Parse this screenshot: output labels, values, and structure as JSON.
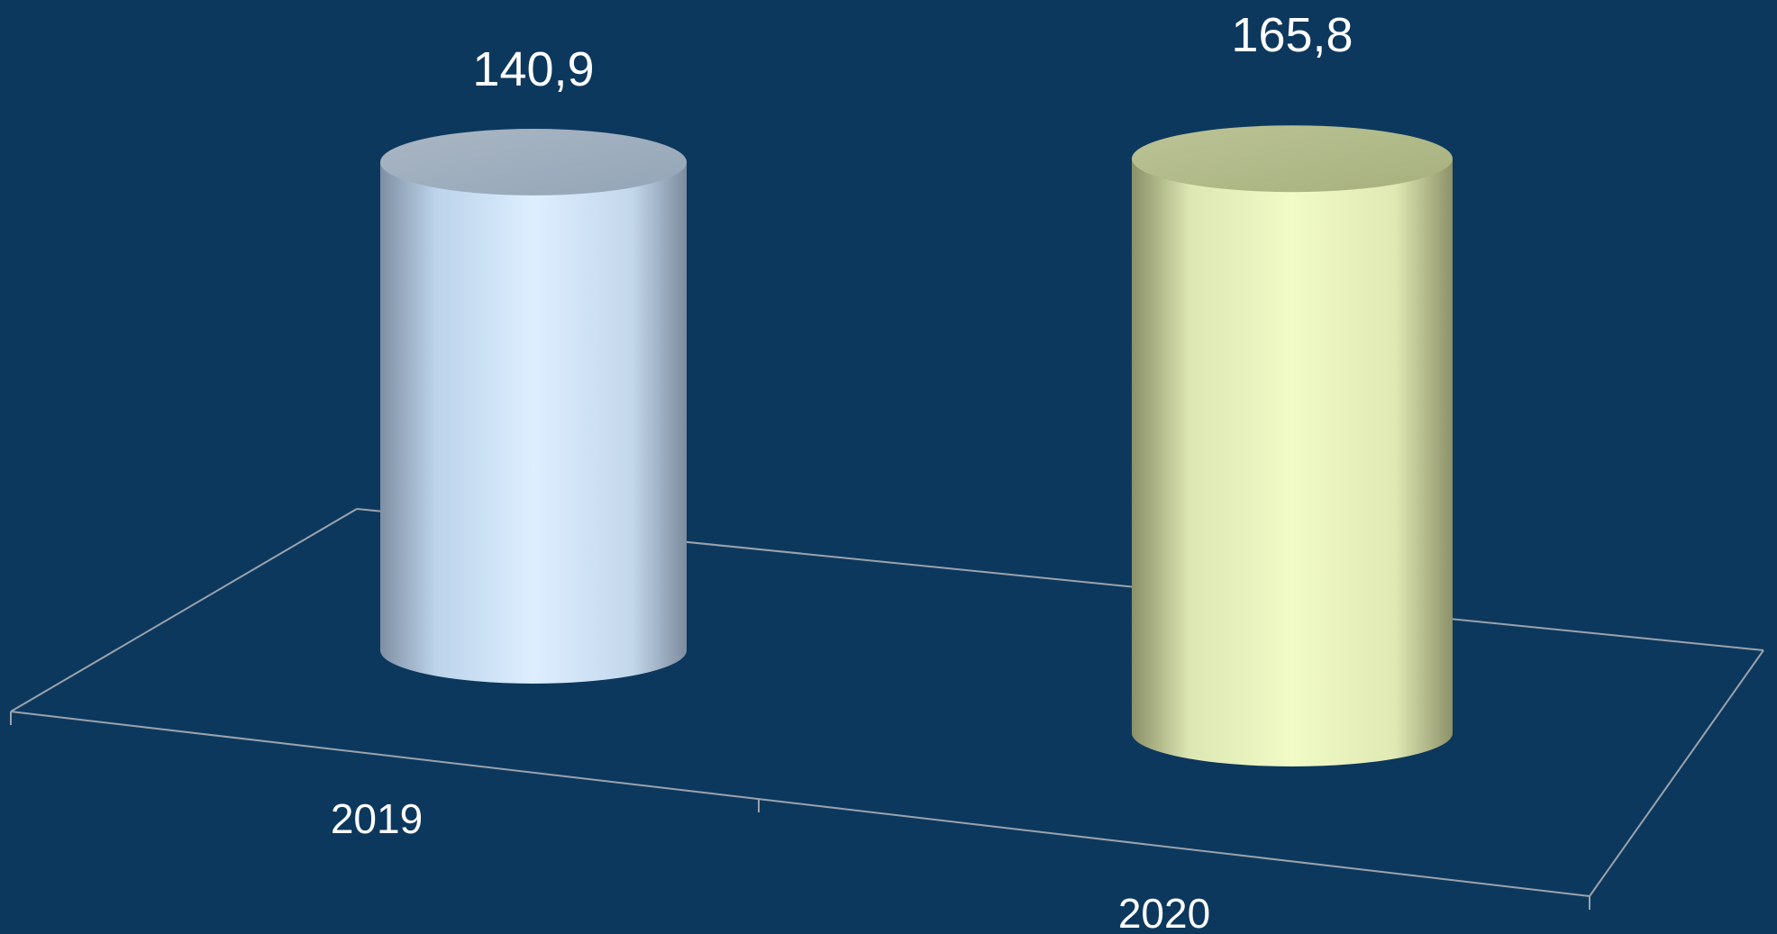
{
  "chart_data": {
    "type": "bar",
    "style": "3d-cylinder",
    "categories": [
      "2019",
      "2020"
    ],
    "values": [
      140.9,
      165.8
    ],
    "data_labels": [
      "140,9",
      "165,8"
    ],
    "grid": false,
    "legend": "none",
    "colors": {
      "background": "#0d385d",
      "series_2019": "#d6e9fb",
      "series_2020": "#eef6c0",
      "floor_line": "#9aa3ad"
    }
  }
}
